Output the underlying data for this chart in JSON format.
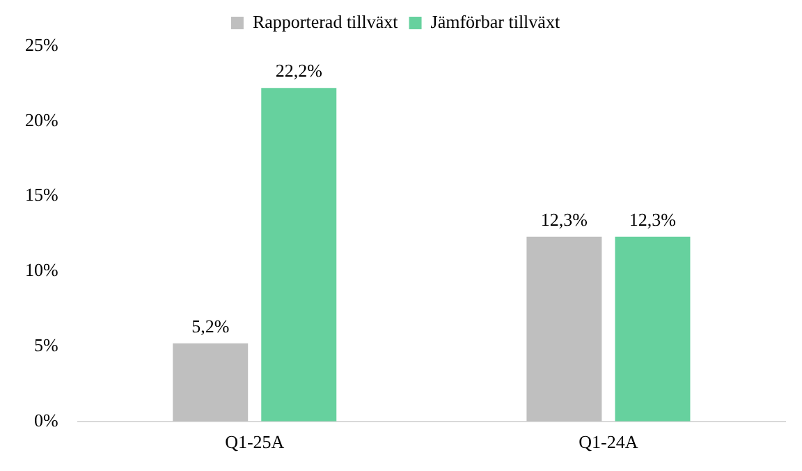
{
  "chart_data": {
    "type": "bar",
    "categories": [
      "Q1-25A",
      "Q1-24A"
    ],
    "series": [
      {
        "name": "Rapporterad tillväxt",
        "color": "#bfbfbf",
        "values": [
          5.2,
          12.3
        ],
        "value_labels": [
          "5,2%",
          "12,3%"
        ]
      },
      {
        "name": "Jämförbar tillväxt",
        "color": "#66d19e",
        "values": [
          22.2,
          12.3
        ],
        "value_labels": [
          "22,2%",
          "12,3%"
        ]
      }
    ],
    "ylim": [
      0,
      25
    ],
    "yticks": [
      {
        "value": 0,
        "label": "0%"
      },
      {
        "value": 5,
        "label": "5%"
      },
      {
        "value": 10,
        "label": "10%"
      },
      {
        "value": 15,
        "label": "15%"
      },
      {
        "value": 20,
        "label": "20%"
      },
      {
        "value": 25,
        "label": "25%"
      }
    ],
    "grid": false,
    "legend": "top"
  }
}
